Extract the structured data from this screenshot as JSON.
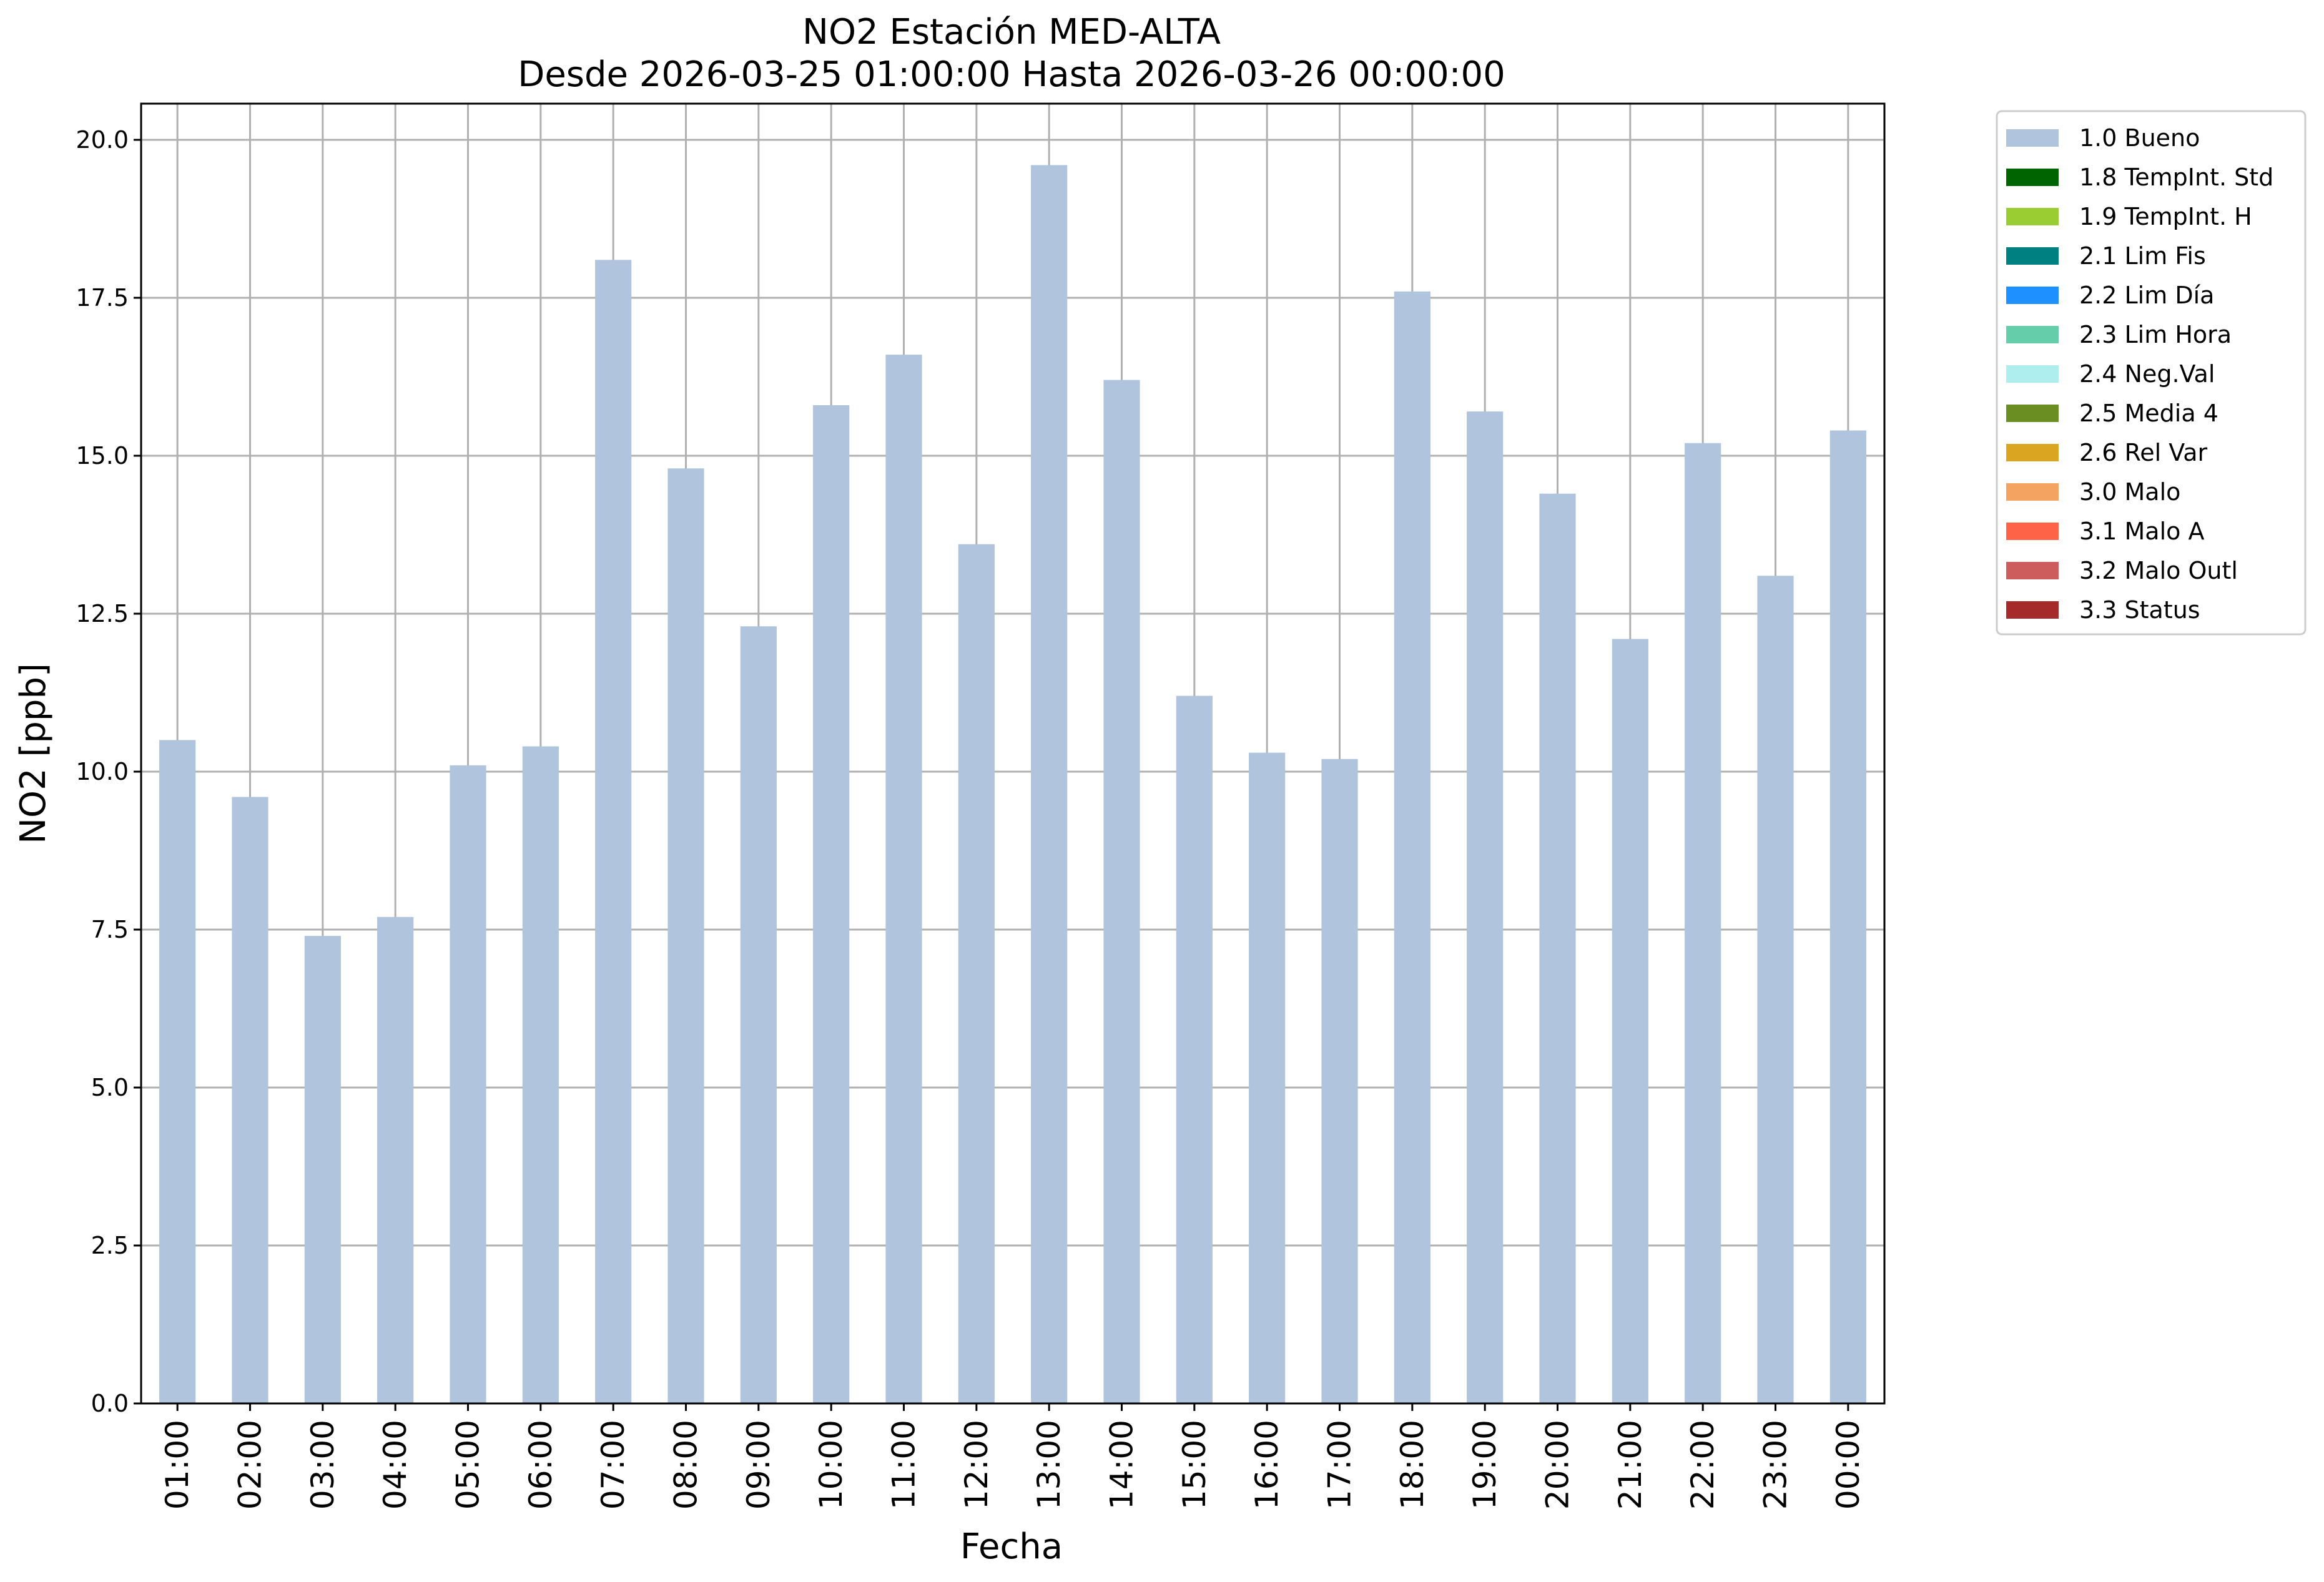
{
  "chart_data": {
    "type": "bar",
    "title": "NO2 Estación MED-ALTA",
    "subtitle": "Desde 2026-03-25 01:00:00 Hasta 2026-03-26 00:00:00",
    "xlabel": "Fecha",
    "ylabel": "NO2 [ppb]",
    "ylim": [
      0,
      20.6
    ],
    "yticks": [
      "0.0",
      "2.5",
      "5.0",
      "7.5",
      "10.0",
      "12.5",
      "15.0",
      "17.5",
      "20.0"
    ],
    "categories": [
      "01:00",
      "02:00",
      "03:00",
      "04:00",
      "05:00",
      "06:00",
      "07:00",
      "08:00",
      "09:00",
      "10:00",
      "11:00",
      "12:00",
      "13:00",
      "14:00",
      "15:00",
      "16:00",
      "17:00",
      "18:00",
      "19:00",
      "20:00",
      "21:00",
      "22:00",
      "23:00",
      "00:00"
    ],
    "series": [
      {
        "name": "1.0 Bueno",
        "color": "#b0c4de",
        "values": [
          10.5,
          9.6,
          7.4,
          7.7,
          10.1,
          10.4,
          18.1,
          14.8,
          12.3,
          15.8,
          16.6,
          13.6,
          19.6,
          16.2,
          11.2,
          10.3,
          10.2,
          17.6,
          15.7,
          14.4,
          12.1,
          15.2,
          13.1,
          15.4
        ]
      }
    ],
    "grid": true,
    "legend_position": "outside-right-top",
    "legend": [
      {
        "label": "1.0 Bueno",
        "color": "#b0c4de"
      },
      {
        "label": "1.8 TempInt. Std",
        "color": "#006400"
      },
      {
        "label": "1.9 TempInt. H",
        "color": "#9acd32"
      },
      {
        "label": "2.1 Lim Fis",
        "color": "#008080"
      },
      {
        "label": "2.2 Lim Día",
        "color": "#1e90ff"
      },
      {
        "label": "2.3 Lim Hora",
        "color": "#66cdaa"
      },
      {
        "label": "2.4 Neg.Val",
        "color": "#afeeee"
      },
      {
        "label": "2.5 Media 4",
        "color": "#6b8e23"
      },
      {
        "label": "2.6 Rel Var",
        "color": "#daa520"
      },
      {
        "label": "3.0 Malo",
        "color": "#f4a460"
      },
      {
        "label": "3.1 Malo A",
        "color": "#ff6347"
      },
      {
        "label": "3.2 Malo Outl",
        "color": "#cd5c5c"
      },
      {
        "label": "3.3 Status",
        "color": "#a52a2a"
      }
    ]
  }
}
